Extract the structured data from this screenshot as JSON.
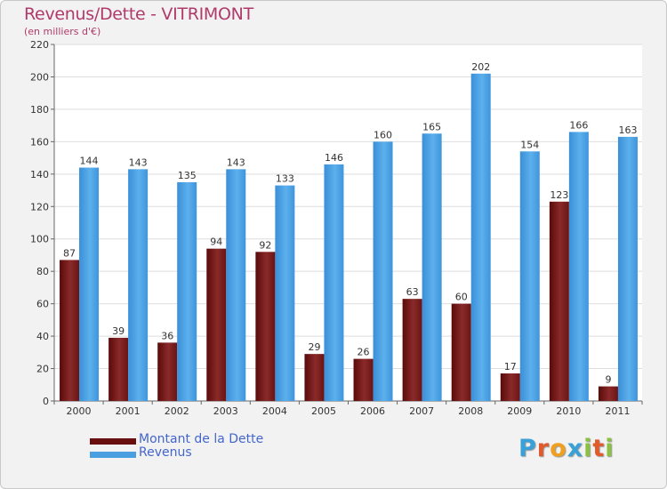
{
  "header": {
    "title": "Revenus/Dette - VITRIMONT",
    "subtitle": "(en milliers d'€)"
  },
  "chart_data": {
    "type": "bar",
    "title": "Revenus/Dette - VITRIMONT",
    "subtitle": "(en milliers d'€)",
    "categories": [
      "2000",
      "2001",
      "2002",
      "2003",
      "2004",
      "2005",
      "2006",
      "2007",
      "2008",
      "2009",
      "2010",
      "2011"
    ],
    "series": [
      {
        "name": "Montant de la Dette",
        "color": "#7a1a1a",
        "values": [
          87,
          39,
          36,
          94,
          92,
          29,
          26,
          63,
          60,
          17,
          123,
          9
        ]
      },
      {
        "name": "Revenus",
        "color": "#4a9fe0",
        "values": [
          144,
          143,
          135,
          143,
          133,
          146,
          160,
          165,
          202,
          154,
          166,
          163
        ]
      }
    ],
    "ylim": [
      0,
      220
    ],
    "yticks": [
      0,
      20,
      40,
      60,
      80,
      100,
      120,
      140,
      160,
      180,
      200,
      220
    ],
    "grid": true,
    "legend": "bottom-left",
    "data_labels": true
  },
  "legend": {
    "items": [
      {
        "label": "Montant de la Dette",
        "color": "#6a0f0f"
      },
      {
        "label": "Revenus",
        "color": "#4a9fe0"
      }
    ]
  },
  "logo": {
    "letters": [
      "P",
      "r",
      "o",
      "x",
      "i",
      "t",
      "i"
    ],
    "colors": [
      "#3aa0d8",
      "#e05a2a",
      "#f0a020",
      "#3aa0d8",
      "#8cc040",
      "#e05a2a",
      "#8cc040"
    ]
  }
}
